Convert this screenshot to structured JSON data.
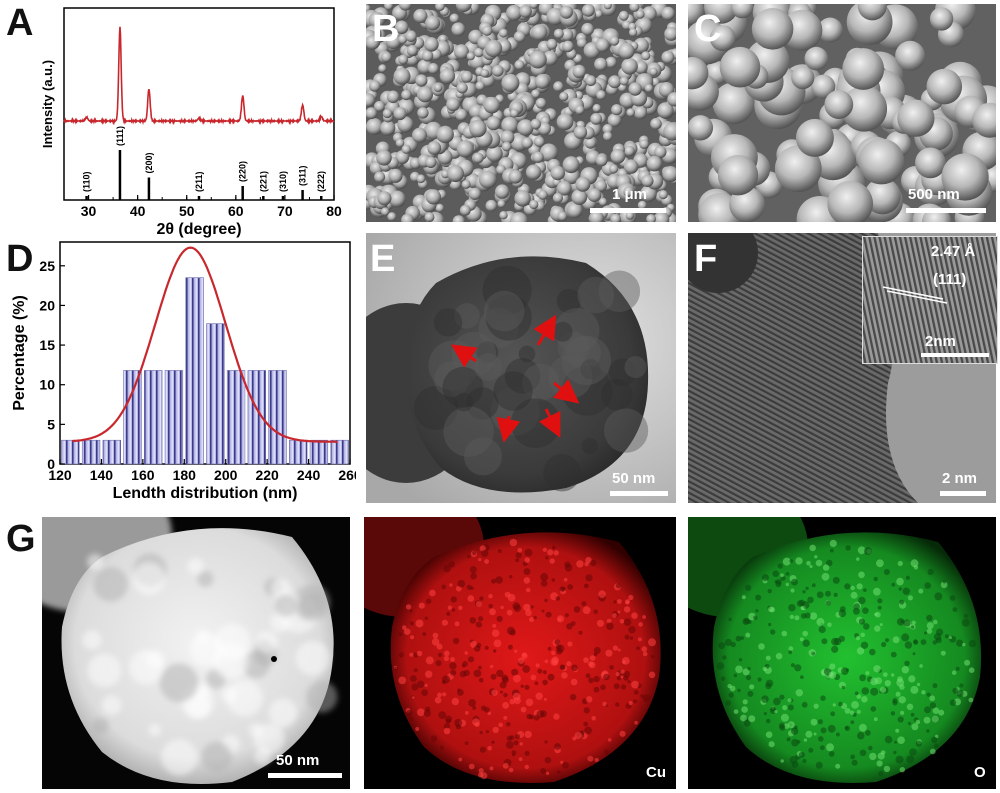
{
  "panels": {
    "A": {
      "label": "A"
    },
    "B": {
      "label": "B",
      "scale_bar": "1 μm"
    },
    "C": {
      "label": "C",
      "scale_bar": "500 nm"
    },
    "D": {
      "label": "D"
    },
    "E": {
      "label": "E",
      "scale_bar": "50 nm"
    },
    "F": {
      "label": "F",
      "scale_bar": "2 nm",
      "inset_spacing": "2.47 Å",
      "inset_plane": "(111)",
      "inset_scale_bar": "2nm"
    },
    "G": {
      "label": "G",
      "scale_bar": "50 nm",
      "channels": [
        "Cu",
        "O"
      ]
    }
  },
  "colors": {
    "curve": "#c8282d",
    "bar_fill": "#b8b8e6",
    "bar_stripe": "#3b3b8c",
    "cu_map": "#e01818",
    "o_map": "#22c030"
  },
  "chart_data": [
    {
      "panel": "A",
      "type": "line",
      "xlabel": "2θ (degree)",
      "ylabel": "Intensity (a.u.)",
      "xlim": [
        25,
        80
      ],
      "xticks": [
        30,
        40,
        50,
        60,
        70,
        80
      ],
      "pattern": {
        "baseline": 0.3,
        "peaks": [
          {
            "x": 29.6,
            "h": 0.04
          },
          {
            "x": 36.4,
            "h": 1.0
          },
          {
            "x": 42.3,
            "h": 0.34
          },
          {
            "x": 52.5,
            "h": 0.03
          },
          {
            "x": 61.4,
            "h": 0.27
          },
          {
            "x": 73.6,
            "h": 0.17
          },
          {
            "x": 77.4,
            "h": 0.05
          }
        ]
      },
      "reference": [
        {
          "x": 29.6,
          "h": 0.08,
          "label": "(110)"
        },
        {
          "x": 36.4,
          "h": 1.0,
          "label": "(111)"
        },
        {
          "x": 42.3,
          "h": 0.45,
          "label": "(200)"
        },
        {
          "x": 52.5,
          "h": 0.04,
          "label": "(211)"
        },
        {
          "x": 61.4,
          "h": 0.28,
          "label": "(220)"
        },
        {
          "x": 65.6,
          "h": 0.04,
          "label": "(221)"
        },
        {
          "x": 69.6,
          "h": 0.05,
          "label": "(310)"
        },
        {
          "x": 73.6,
          "h": 0.2,
          "label": "(311)"
        },
        {
          "x": 77.4,
          "h": 0.06,
          "label": "(222)"
        }
      ]
    },
    {
      "panel": "D",
      "type": "bar",
      "xlabel": "Lendth distribution (nm)",
      "ylabel": "Percentage (%)",
      "xlim": [
        120,
        260
      ],
      "ylim": [
        0,
        28
      ],
      "xticks": [
        120,
        140,
        160,
        180,
        200,
        220,
        240,
        260
      ],
      "yticks": [
        0,
        5,
        10,
        15,
        20,
        25
      ],
      "bin_width": 10,
      "x": [
        125,
        135,
        145,
        155,
        165,
        175,
        185,
        195,
        205,
        215,
        225,
        235,
        245,
        255
      ],
      "values": [
        3,
        3,
        3,
        11.8,
        11.8,
        11.8,
        23.5,
        17.7,
        11.8,
        11.8,
        11.8,
        3,
        3,
        3
      ],
      "fit": {
        "type": "gaussian",
        "center": 183,
        "amplitude": 24.5,
        "sigma": 17,
        "offset": 2.8
      }
    }
  ]
}
